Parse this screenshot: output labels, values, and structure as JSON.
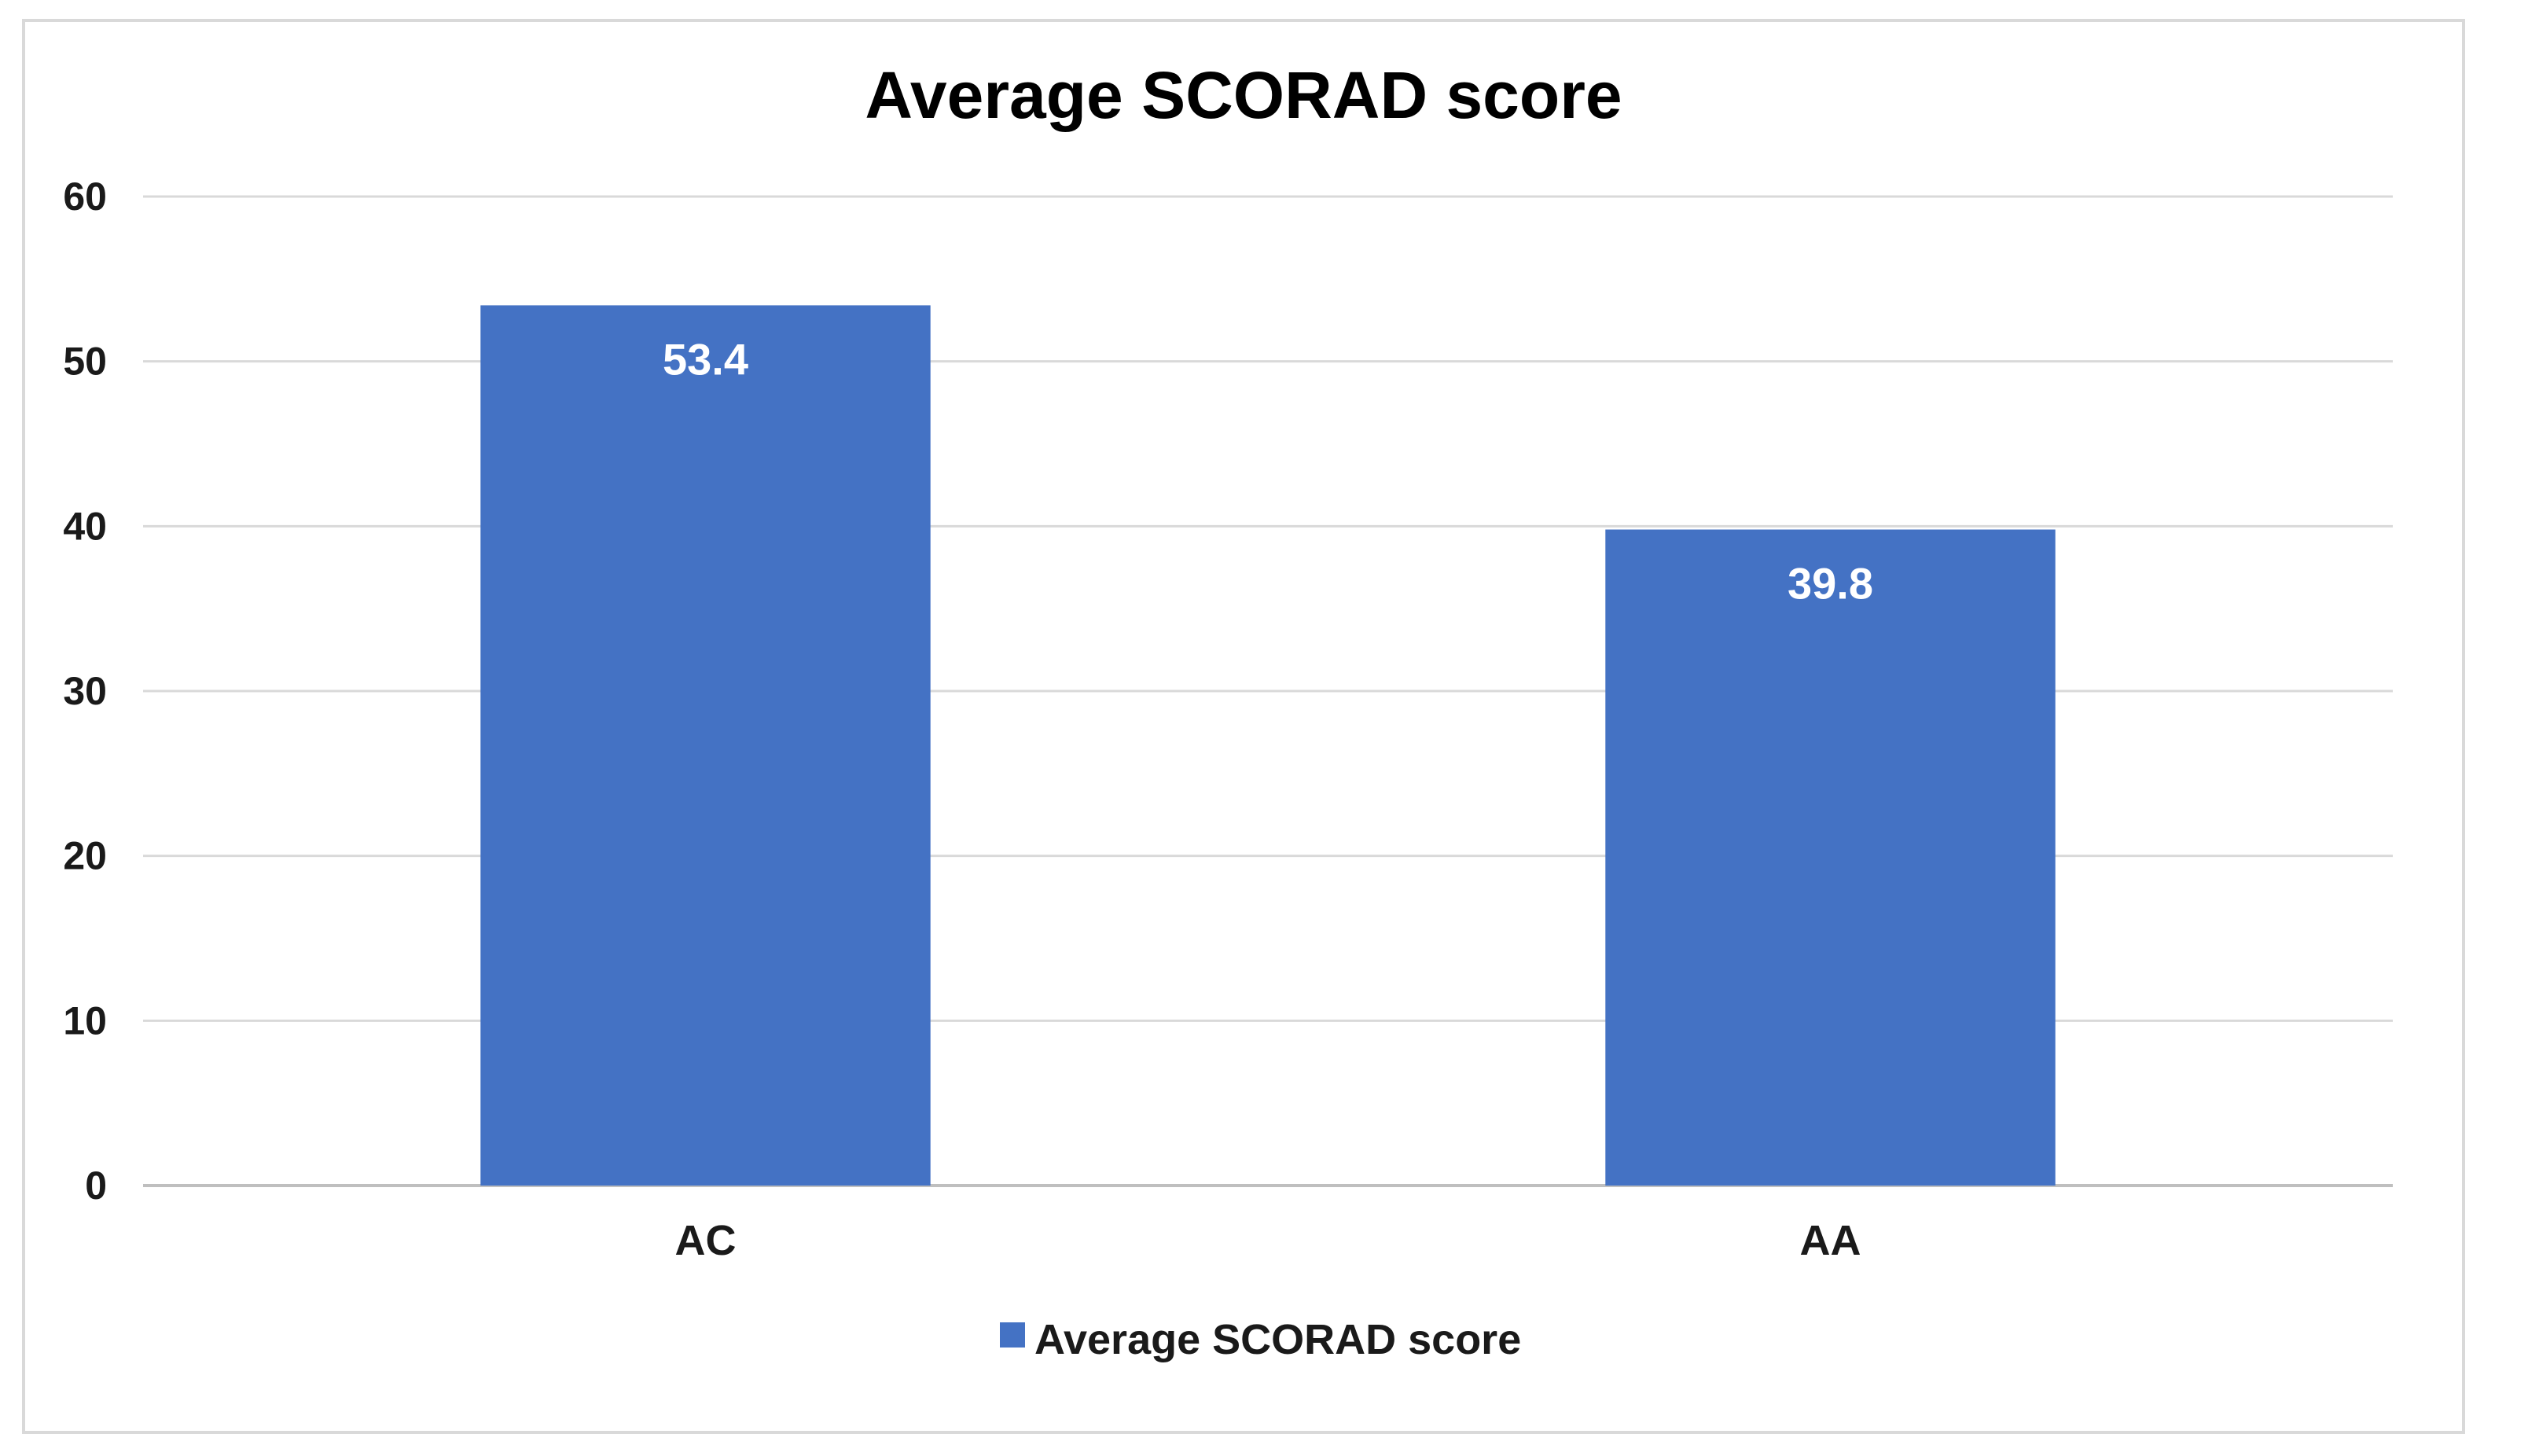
{
  "chart_data": {
    "type": "bar",
    "title": "Average SCORAD score",
    "xlabel": "",
    "ylabel": "",
    "categories": [
      "AC",
      "AA"
    ],
    "series": [
      {
        "name": "Average SCORAD score",
        "values": [
          53.4,
          39.8
        ],
        "data_labels": [
          "53.4",
          "39.8"
        ],
        "color": "#4472c4"
      }
    ],
    "ylim": [
      0,
      60
    ],
    "yticks": [
      0,
      10,
      20,
      30,
      40,
      50,
      60
    ],
    "ytick_labels": [
      "0",
      "10",
      "20",
      "30",
      "40",
      "50",
      "60"
    ],
    "grid": true,
    "legend": "bottom",
    "legend_entries": [
      "Average SCORAD score"
    ]
  }
}
